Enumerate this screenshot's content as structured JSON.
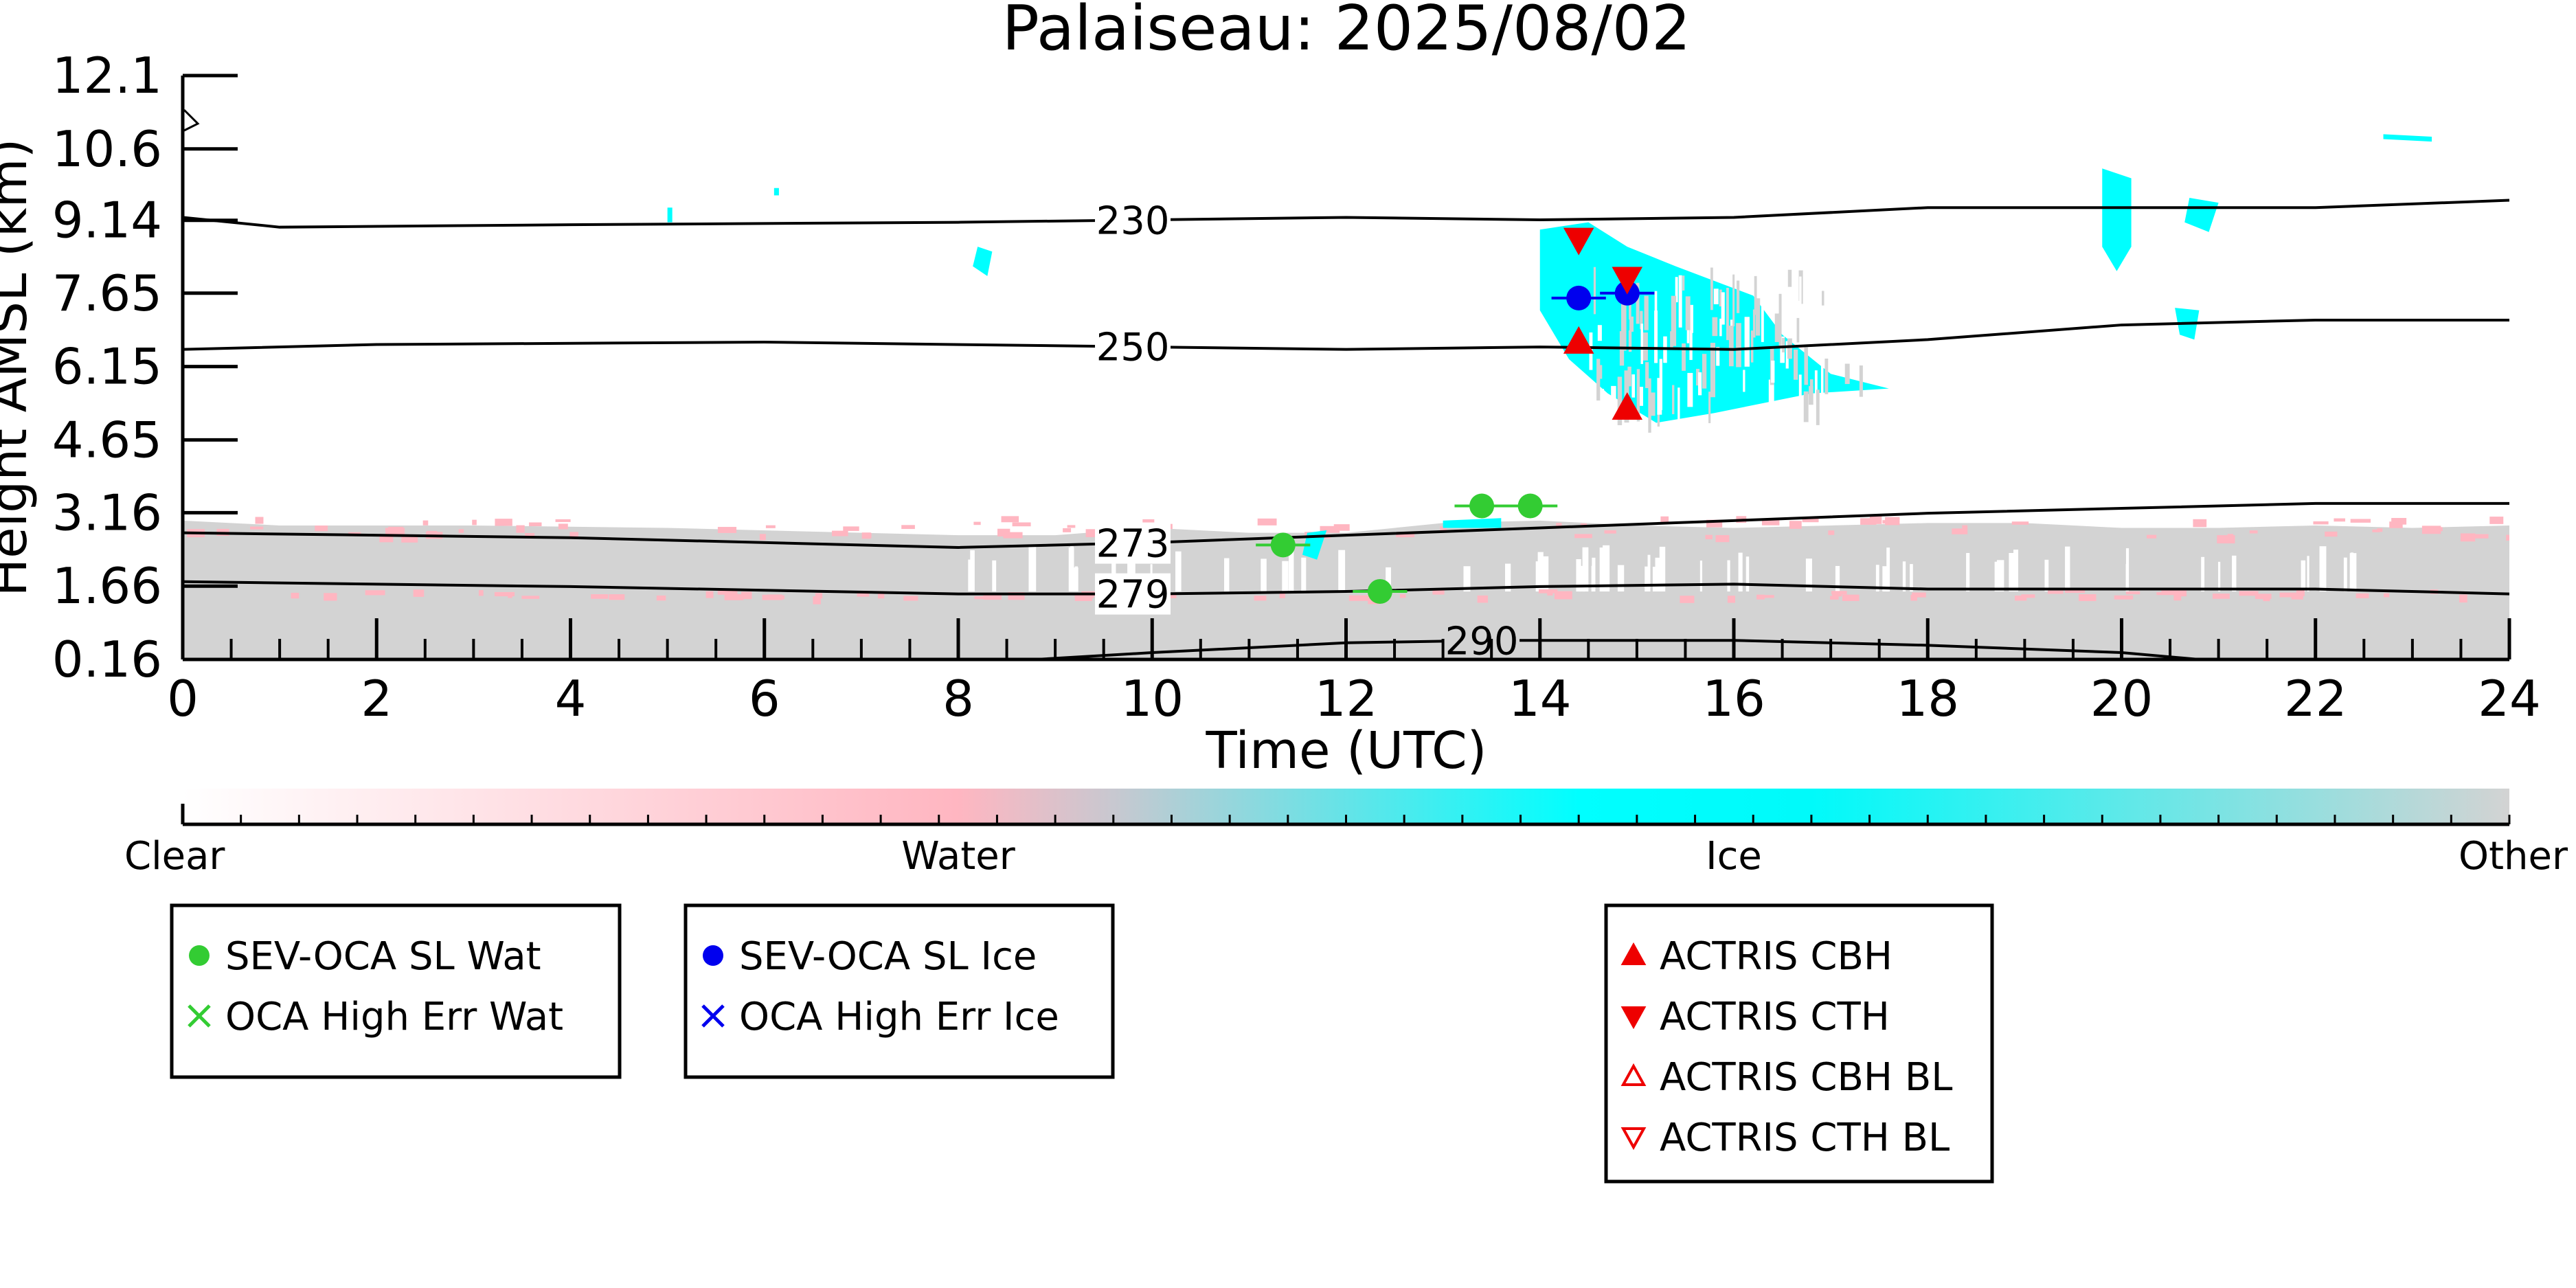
{
  "chart_data": {
    "type": "scatter",
    "title": "Palaiseau: 2025/08/02",
    "xlabel": "Time (UTC)",
    "ylabel": "Height AMSL (km)",
    "xlim": [
      0,
      24
    ],
    "ylim": [
      0.16,
      12.1
    ],
    "x_ticks": [
      "0",
      "2",
      "4",
      "6",
      "8",
      "10",
      "12",
      "14",
      "16",
      "18",
      "20",
      "22",
      "24"
    ],
    "y_ticks": [
      "0.16",
      "1.66",
      "3.16",
      "4.65",
      "6.15",
      "7.65",
      "9.14",
      "10.6",
      "12.1"
    ],
    "grid": false,
    "background_classification": {
      "colorbar_labels": [
        "Clear",
        "Water",
        "Ice",
        "Other"
      ],
      "colors": {
        "Clear": "#ffffff",
        "Water": "#ffb6c1",
        "Ice": "#00ffff",
        "Other": "#d3d3d3"
      }
    },
    "temperature_contours": [
      {
        "label": "230",
        "x": [
          0,
          1,
          4,
          8,
          10,
          12,
          14,
          16,
          18,
          20,
          22,
          24
        ],
        "y": [
          9.2,
          9.0,
          9.05,
          9.1,
          9.15,
          9.2,
          9.15,
          9.2,
          9.4,
          9.4,
          9.4,
          9.55
        ]
      },
      {
        "label": "250",
        "x": [
          0,
          2,
          6,
          10,
          12,
          14,
          16,
          18,
          20,
          22,
          24
        ],
        "y": [
          6.5,
          6.6,
          6.65,
          6.55,
          6.5,
          6.55,
          6.5,
          6.7,
          7.0,
          7.1,
          7.1
        ]
      },
      {
        "label": "273",
        "x": [
          0,
          4,
          8,
          10,
          12,
          14,
          16,
          18,
          20,
          22,
          24
        ],
        "y": [
          2.75,
          2.65,
          2.45,
          2.55,
          2.7,
          2.85,
          3.0,
          3.15,
          3.25,
          3.35,
          3.35
        ]
      },
      {
        "label": "279",
        "x": [
          0,
          4,
          8,
          10,
          12,
          14,
          16,
          18,
          20,
          22,
          24
        ],
        "y": [
          1.75,
          1.65,
          1.5,
          1.5,
          1.55,
          1.65,
          1.7,
          1.6,
          1.6,
          1.6,
          1.5
        ]
      },
      {
        "label": "290",
        "x": [
          8.8,
          10,
          12,
          13.5,
          16,
          18,
          20,
          20.8
        ],
        "y": [
          0.16,
          0.3,
          0.5,
          0.55,
          0.55,
          0.45,
          0.3,
          0.16
        ]
      }
    ],
    "series": [
      {
        "name": "SEV-OCA SL Wat",
        "marker": "filled-circle",
        "color": "#33cc33",
        "x": [
          11.35,
          12.35,
          13.4,
          13.9
        ],
        "y": [
          2.5,
          1.55,
          3.3,
          3.3
        ]
      },
      {
        "name": "OCA High Err Wat",
        "marker": "x",
        "color": "#33cc33",
        "x": [],
        "y": []
      },
      {
        "name": "SEV-OCA SL Ice",
        "marker": "filled-circle",
        "color": "#0000ee",
        "x": [
          14.4,
          14.9
        ],
        "y": [
          7.55,
          7.65
        ]
      },
      {
        "name": "OCA High Err Ice",
        "marker": "x",
        "color": "#0000ee",
        "x": [],
        "y": []
      },
      {
        "name": "ACTRIS CBH",
        "marker": "triangle-up",
        "color": "#ee0000",
        "x": [
          14.4,
          14.9
        ],
        "y": [
          6.65,
          5.3
        ]
      },
      {
        "name": "ACTRIS CTH",
        "marker": "triangle-down",
        "color": "#ee0000",
        "x": [
          14.4,
          14.9
        ],
        "y": [
          8.75,
          7.95
        ]
      },
      {
        "name": "ACTRIS CBH BL",
        "marker": "open-triangle-up",
        "color": "#ee0000",
        "x": [],
        "y": []
      },
      {
        "name": "ACTRIS CTH BL",
        "marker": "open-triangle-down",
        "color": "#ee0000",
        "x": [],
        "y": []
      }
    ],
    "legend_groups": [
      [
        "SEV-OCA SL Wat",
        "OCA High Err Wat"
      ],
      [
        "SEV-OCA SL Ice",
        "OCA High Err Ice"
      ],
      [
        "ACTRIS CBH",
        "ACTRIS CTH",
        "ACTRIS CBH BL",
        "ACTRIS CTH BL"
      ]
    ]
  }
}
